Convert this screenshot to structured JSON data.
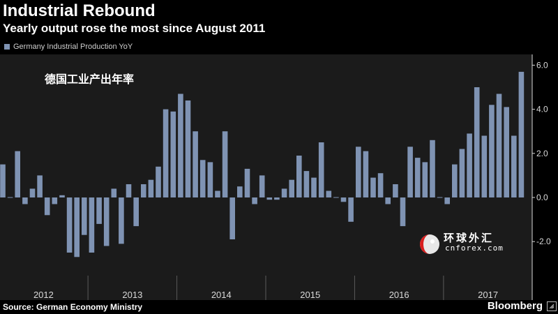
{
  "header": {
    "title": "Industrial Rebound",
    "subtitle": "Yearly output rose the most since August 2011"
  },
  "annotation": "德国工业产出年率",
  "footer": {
    "source": "Source: German Economy Ministry",
    "brand": "Bloomberg"
  },
  "watermark": {
    "cn": "环球外汇",
    "en": "cnforex.com"
  },
  "colors": {
    "background": "#000000",
    "plot_background": "#1b1b1b",
    "bar": "#7f93b3",
    "axis_text": "#d9d9d9",
    "divider": "#5a5a5a"
  },
  "chart_data": {
    "type": "bar",
    "title": "Industrial Rebound",
    "subtitle": "Yearly output rose the most since August 2011",
    "ylabel": "",
    "xlabel": "",
    "ylim": [
      -2.8,
      6.4
    ],
    "yticks": [
      6.0,
      4.0,
      2.0,
      0.0,
      -2.0
    ],
    "ytick_labels": [
      "6.0",
      "4.0",
      "2.0",
      "0.0",
      "-2.0"
    ],
    "y_axis_side": "right",
    "legend_position": "top-left",
    "grid": false,
    "year_labels": [
      "2012",
      "2013",
      "2014",
      "2015",
      "2016",
      "2017"
    ],
    "series": [
      {
        "name": "Germany Industrial Production YoY",
        "start": "2012-01",
        "frequency": "monthly",
        "values": [
          1.5,
          0.0,
          2.1,
          -0.3,
          0.4,
          1.0,
          -0.8,
          -0.3,
          0.1,
          -2.5,
          -2.7,
          -1.7,
          -2.5,
          -1.2,
          -2.2,
          0.4,
          -2.1,
          0.6,
          -1.3,
          0.6,
          0.8,
          1.4,
          4.0,
          3.9,
          4.7,
          4.4,
          3.0,
          1.7,
          1.6,
          0.3,
          3.0,
          -1.9,
          0.5,
          1.3,
          -0.3,
          1.0,
          -0.1,
          -0.1,
          0.4,
          0.8,
          1.9,
          1.2,
          0.9,
          2.5,
          0.3,
          0.0,
          -0.2,
          -1.1,
          2.3,
          2.1,
          0.9,
          1.1,
          -0.3,
          0.6,
          -1.3,
          2.3,
          1.8,
          1.6,
          2.6,
          0.0,
          -0.3,
          1.5,
          2.2,
          2.9,
          5.0,
          2.8,
          4.2,
          4.7,
          4.1,
          2.8,
          5.7
        ]
      }
    ]
  }
}
